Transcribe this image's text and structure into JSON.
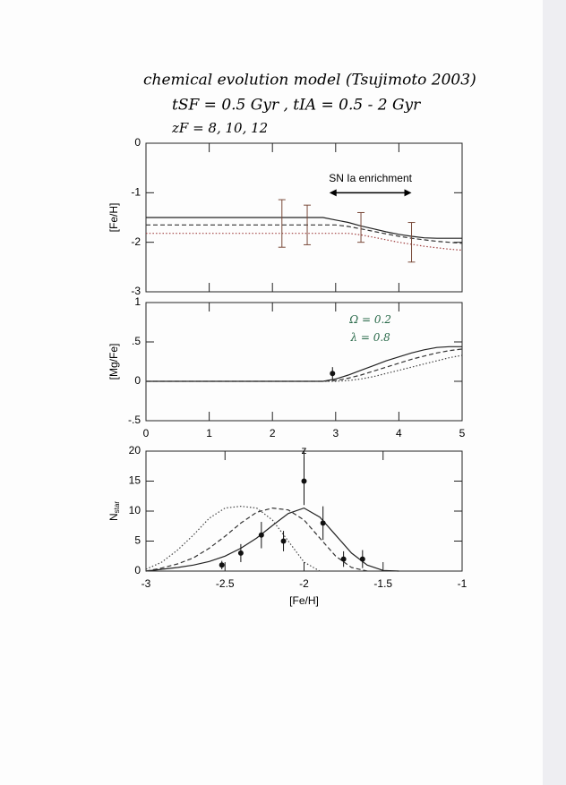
{
  "header": {
    "lines": [
      "chemical evolution model  (Tsujimoto 2003)",
      "tSF = 0.5 Gyr ,  tIA = 0.5 - 2 Gyr",
      "zF = 8, 10, 12"
    ]
  },
  "chart_data": [
    {
      "type": "line",
      "ylabel": "[Fe/H]",
      "xlim": [
        0,
        5
      ],
      "xticks": [
        0,
        1,
        2,
        3,
        4,
        5
      ],
      "show_xtick_labels": false,
      "ylim": [
        -3,
        0
      ],
      "yticks": [
        0,
        -1,
        -2,
        -3
      ],
      "x": [
        0,
        1,
        2,
        2.5,
        2.8,
        3,
        3.2,
        3.4,
        3.6,
        3.8,
        4,
        4.2,
        4.4,
        4.6,
        4.8,
        5
      ],
      "series": [
        {
          "color": "#222222",
          "dash": "solid",
          "values": [
            -1.5,
            -1.5,
            -1.5,
            -1.5,
            -1.5,
            -1.55,
            -1.6,
            -1.67,
            -1.73,
            -1.79,
            -1.84,
            -1.88,
            -1.91,
            -1.92,
            -1.92,
            -1.92
          ]
        },
        {
          "color": "#333333",
          "dash": "dashed",
          "values": [
            -1.65,
            -1.65,
            -1.65,
            -1.65,
            -1.65,
            -1.65,
            -1.68,
            -1.73,
            -1.78,
            -1.83,
            -1.88,
            -1.92,
            -1.95,
            -1.98,
            -2.0,
            -2.02
          ]
        },
        {
          "color": "#a04040",
          "dash": "dotted",
          "values": [
            -1.82,
            -1.82,
            -1.82,
            -1.82,
            -1.82,
            -1.82,
            -1.82,
            -1.85,
            -1.9,
            -1.95,
            -2.0,
            -2.04,
            -2.08,
            -2.11,
            -2.14,
            -2.16
          ]
        }
      ],
      "points": {
        "style": "bar-only",
        "color": "#7a4a3a",
        "x": [
          2.15,
          2.55,
          3.4,
          4.2
        ],
        "values": [
          -1.62,
          -1.65,
          -1.7,
          -2.0
        ],
        "errors": [
          0.48,
          0.4,
          0.3,
          0.4
        ]
      },
      "annotations": [
        {
          "text": "SN Ia enrichment",
          "x": 3.55,
          "y": -0.72,
          "color": "#000000"
        }
      ],
      "arrow": {
        "x": [
          2.9,
          4.2
        ],
        "y": -1
      }
    },
    {
      "type": "line",
      "xlabel": "z",
      "ylabel": "[Mg/Fe]",
      "xlim": [
        0,
        5
      ],
      "xticks": [
        0,
        1,
        2,
        3,
        4,
        5
      ],
      "show_xtick_labels": true,
      "ylim": [
        -0.5,
        1
      ],
      "yticks": [
        1,
        {
          "value": 0.5,
          "label": ".5"
        },
        0,
        {
          "value": -0.5,
          "label": "-.5"
        }
      ],
      "x": [
        0,
        1,
        2,
        2.8,
        3,
        3.2,
        3.4,
        3.6,
        3.8,
        4,
        4.2,
        4.4,
        4.6,
        4.8,
        5
      ],
      "series": [
        {
          "color": "#222222",
          "dash": "solid",
          "values": [
            0,
            0,
            0,
            0,
            0.03,
            0.08,
            0.14,
            0.2,
            0.26,
            0.31,
            0.36,
            0.4,
            0.43,
            0.44,
            0.44
          ]
        },
        {
          "color": "#333333",
          "dash": "dashed",
          "values": [
            0,
            0,
            0,
            0,
            0.01,
            0.04,
            0.08,
            0.13,
            0.18,
            0.23,
            0.28,
            0.32,
            0.36,
            0.39,
            0.41
          ]
        },
        {
          "color": "#444444",
          "dash": "dotted",
          "values": [
            0,
            0,
            0,
            0,
            0,
            0.01,
            0.03,
            0.06,
            0.1,
            0.14,
            0.18,
            0.22,
            0.26,
            0.3,
            0.33
          ]
        }
      ],
      "points": {
        "style": "dot",
        "color": "#111111",
        "x": [
          2.95
        ],
        "values": [
          0.1
        ],
        "errors": [
          0.08
        ]
      },
      "annotations": [
        {
          "text": "Ω = 0.2",
          "x": 3.55,
          "y": 0.78,
          "color": "#2a6a4a"
        },
        {
          "text": "λ = 0.8",
          "x": 3.55,
          "y": 0.55,
          "color": "#2a6a4a"
        }
      ]
    },
    {
      "type": "line",
      "xlabel": "[Fe/H]",
      "ylabel": "N",
      "ylabel_sub": "star",
      "xlim": [
        -3,
        -1
      ],
      "xticks": [
        -3,
        -2.5,
        -2,
        -1.5,
        -1
      ],
      "show_xtick_labels": true,
      "ylim": [
        0,
        20
      ],
      "yticks": [
        0,
        5,
        10,
        15,
        20
      ],
      "x": [
        -3,
        -2.9,
        -2.8,
        -2.7,
        -2.6,
        -2.5,
        -2.4,
        -2.3,
        -2.2,
        -2.1,
        -2,
        -1.9,
        -1.8,
        -1.7,
        -1.6,
        -1.5,
        -1.4
      ],
      "series": [
        {
          "color": "#222222",
          "dash": "solid",
          "values": [
            0,
            0.3,
            0.6,
            1.0,
            1.6,
            2.5,
            3.8,
            5.5,
            7.6,
            9.6,
            10.5,
            9.0,
            6.0,
            3.0,
            1.0,
            0.1,
            0
          ]
        },
        {
          "color": "#333333",
          "dash": "dashed",
          "values": [
            0,
            0.5,
            1.2,
            2.2,
            3.8,
            5.8,
            8.0,
            9.8,
            10.5,
            10.2,
            8.5,
            5.5,
            2.5,
            0.6,
            0,
            null,
            null
          ]
        },
        {
          "color": "#444444",
          "dash": "dotted",
          "values": [
            0.3,
            1.5,
            3.5,
            6.0,
            8.8,
            10.5,
            10.8,
            10.5,
            8.5,
            5.0,
            1.5,
            0,
            null,
            null,
            null,
            null,
            null
          ]
        }
      ],
      "points": {
        "style": "dot",
        "color": "#111111",
        "x": [
          -2.52,
          -2.4,
          -2.27,
          -2.13,
          -2.0,
          -1.88,
          -1.75,
          -1.63
        ],
        "values": [
          1,
          3,
          6,
          5,
          15,
          8,
          2,
          2
        ],
        "errors": [
          0.7,
          1.5,
          2.2,
          1.7,
          4,
          2.8,
          1.3,
          1.5
        ]
      }
    }
  ]
}
